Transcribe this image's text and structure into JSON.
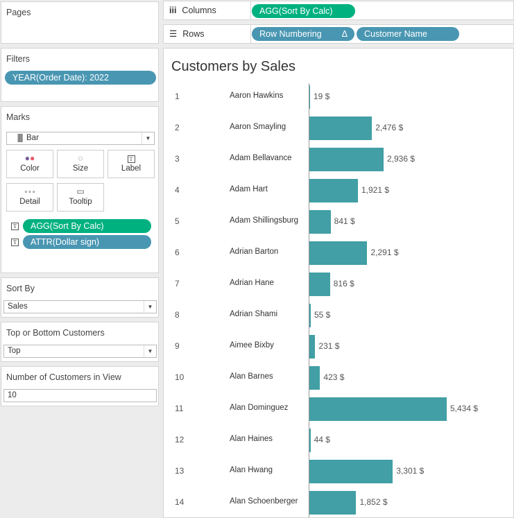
{
  "pages": {
    "title": "Pages"
  },
  "filters": {
    "title": "Filters",
    "pill": "YEAR(Order Date): 2022"
  },
  "marks": {
    "title": "Marks",
    "type": "Bar",
    "cards": [
      "Color",
      "Size",
      "Label",
      "Detail",
      "Tooltip"
    ],
    "pills": [
      "AGG(Sort By Calc)",
      "ATTR(Dollar sign)"
    ]
  },
  "sort_by": {
    "title": "Sort By",
    "value": "Sales"
  },
  "top_bottom": {
    "title": "Top or Bottom Customers",
    "value": "Top"
  },
  "num_customers": {
    "title": "Number of Customers in View",
    "value": "10"
  },
  "columns": {
    "label": "Columns",
    "pill": "AGG(Sort By Calc)"
  },
  "rows": {
    "label": "Rows",
    "pills": [
      "Row Numbering",
      "Customer Name"
    ],
    "delta": "Δ"
  },
  "view": {
    "title": "Customers by Sales"
  },
  "chart_data": {
    "type": "bar",
    "orientation": "horizontal",
    "title": "Customers by Sales",
    "unit_suffix": " $",
    "rows": [
      {
        "n": "1",
        "name": "Aaron Hawkins",
        "value": 19,
        "label": "19 $"
      },
      {
        "n": "2",
        "name": "Aaron Smayling",
        "value": 2476,
        "label": "2,476 $"
      },
      {
        "n": "3",
        "name": "Adam Bellavance",
        "value": 2936,
        "label": "2,936 $"
      },
      {
        "n": "4",
        "name": "Adam Hart",
        "value": 1921,
        "label": "1,921 $"
      },
      {
        "n": "5",
        "name": "Adam Shillingsburg",
        "value": 841,
        "label": "841 $"
      },
      {
        "n": "6",
        "name": "Adrian Barton",
        "value": 2291,
        "label": "2,291 $"
      },
      {
        "n": "7",
        "name": "Adrian Hane",
        "value": 816,
        "label": "816 $"
      },
      {
        "n": "8",
        "name": "Adrian Shami",
        "value": 55,
        "label": "55 $"
      },
      {
        "n": "9",
        "name": "Aimee Bixby",
        "value": 231,
        "label": "231 $"
      },
      {
        "n": "10",
        "name": "Alan Barnes",
        "value": 423,
        "label": "423 $"
      },
      {
        "n": "11",
        "name": "Alan Dominguez",
        "value": 5434,
        "label": "5,434 $"
      },
      {
        "n": "12",
        "name": "Alan Haines",
        "value": 44,
        "label": "44 $"
      },
      {
        "n": "13",
        "name": "Alan Hwang",
        "value": 3301,
        "label": "3,301 $"
      },
      {
        "n": "14",
        "name": "Alan Schoenberger",
        "value": 1852,
        "label": "1,852 $"
      }
    ]
  }
}
